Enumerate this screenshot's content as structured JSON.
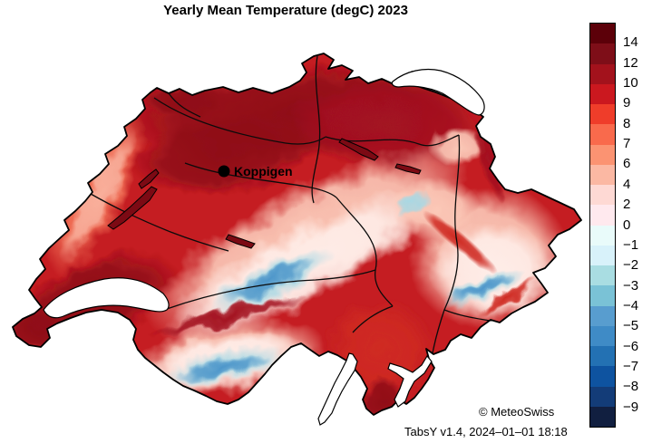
{
  "title": "Yearly Mean Temperature (degC) 2023",
  "map": {
    "region": "Switzerland",
    "marker_label": "Koppigen",
    "attribution": "© MeteoSwiss"
  },
  "footer": "TabsY v1.4, 2024–01–01 18:18",
  "chart_data": {
    "type": "heatmap",
    "title": "Yearly Mean Temperature (degC) 2023",
    "variable": "Yearly Mean Temperature",
    "unit": "degC",
    "year": "2023",
    "region": "Switzerland",
    "marker": "Koppigen",
    "legend_position": "right",
    "colorbar_orientation": "vertical",
    "colorbar_tick_labels": [
      "14",
      "12",
      "10",
      "9",
      "8",
      "7",
      "6",
      "4",
      "2",
      "0",
      "−1",
      "−2",
      "−3",
      "−4",
      "−5",
      "−6",
      "−7",
      "−8",
      "−9"
    ],
    "colorbar_segment_colors": [
      "#5c0009",
      "#7e0e18",
      "#a3121c",
      "#cb181f",
      "#ef3d2a",
      "#f96a4c",
      "#fb9372",
      "#fbb8a3",
      "#fed9d4",
      "#ffe9ee",
      "#e9fbfa",
      "#d8f2fa",
      "#a9dde2",
      "#7ac2d6",
      "#589dcf",
      "#3f8bc6",
      "#2371b3",
      "#0e53a0",
      "#133c78",
      "#111f40"
    ],
    "attribution": "© MeteoSwiss",
    "footnote": "TabsY v1.4, 2024–01–01 18:18"
  }
}
